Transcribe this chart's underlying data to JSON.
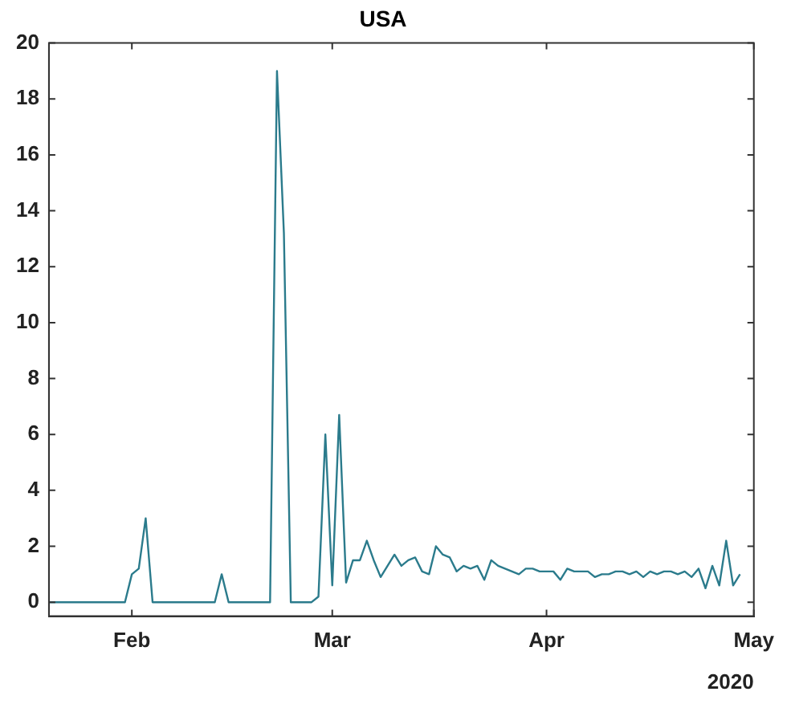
{
  "chart_data": {
    "type": "line",
    "title": "USA",
    "xlabel": "2020",
    "color": "#2b7b8c",
    "grid": false,
    "legend": false,
    "marker": "none",
    "line_style": "solid",
    "xlim": [
      "2020-01-20",
      "2020-05-01"
    ],
    "xticks": [
      {
        "value": "2020-02-01",
        "label": "Feb"
      },
      {
        "value": "2020-03-01",
        "label": "Mar"
      },
      {
        "value": "2020-04-01",
        "label": "Apr"
      },
      {
        "value": "2020-05-01",
        "label": "May"
      }
    ],
    "ylim": [
      -0.5,
      20
    ],
    "yticks": [
      0,
      2,
      4,
      6,
      8,
      10,
      12,
      14,
      16,
      18,
      20
    ],
    "x": [
      "2020-01-20",
      "2020-01-31",
      "2020-02-01",
      "2020-02-02",
      "2020-02-03",
      "2020-02-04",
      "2020-02-13",
      "2020-02-14",
      "2020-02-15",
      "2020-02-21",
      "2020-02-22",
      "2020-02-23",
      "2020-02-24",
      "2020-02-27",
      "2020-02-28",
      "2020-02-29",
      "2020-03-01",
      "2020-03-02",
      "2020-03-03",
      "2020-03-04",
      "2020-03-05",
      "2020-03-06",
      "2020-03-07",
      "2020-03-08",
      "2020-03-09",
      "2020-03-10",
      "2020-03-11",
      "2020-03-12",
      "2020-03-13",
      "2020-03-14",
      "2020-03-15",
      "2020-03-16",
      "2020-03-17",
      "2020-03-18",
      "2020-03-19",
      "2020-03-20",
      "2020-03-21",
      "2020-03-22",
      "2020-03-23",
      "2020-03-24",
      "2020-03-25",
      "2020-03-26",
      "2020-03-27",
      "2020-03-28",
      "2020-03-29",
      "2020-03-30",
      "2020-03-31",
      "2020-04-01",
      "2020-04-02",
      "2020-04-03",
      "2020-04-04",
      "2020-04-05",
      "2020-04-06",
      "2020-04-07",
      "2020-04-08",
      "2020-04-09",
      "2020-04-10",
      "2020-04-11",
      "2020-04-12",
      "2020-04-13",
      "2020-04-14",
      "2020-04-15",
      "2020-04-16",
      "2020-04-17",
      "2020-04-18",
      "2020-04-19",
      "2020-04-20",
      "2020-04-21",
      "2020-04-22",
      "2020-04-23",
      "2020-04-24",
      "2020-04-25",
      "2020-04-26",
      "2020-04-27",
      "2020-04-28",
      "2020-04-29"
    ],
    "values": [
      0,
      0,
      1,
      1.2,
      3,
      0,
      0,
      1,
      0,
      0,
      19,
      13.2,
      0,
      0,
      0.2,
      6,
      0.6,
      6.7,
      0.7,
      1.5,
      1.5,
      2.2,
      1.5,
      0.9,
      1.3,
      1.7,
      1.3,
      1.5,
      1.6,
      1.1,
      1.0,
      2.0,
      1.7,
      1.6,
      1.1,
      1.3,
      1.2,
      1.3,
      0.8,
      1.5,
      1.3,
      1.2,
      1.1,
      1.0,
      1.2,
      1.2,
      1.1,
      1.1,
      1.1,
      0.8,
      1.2,
      1.1,
      1.1,
      1.1,
      0.9,
      1.0,
      1.0,
      1.1,
      1.1,
      1.0,
      1.1,
      0.9,
      1.1,
      1.0,
      1.1,
      1.1,
      1.0,
      1.1,
      0.9,
      1.2,
      0.5,
      1.3,
      0.6,
      2.2,
      0.6,
      1.0
    ]
  }
}
